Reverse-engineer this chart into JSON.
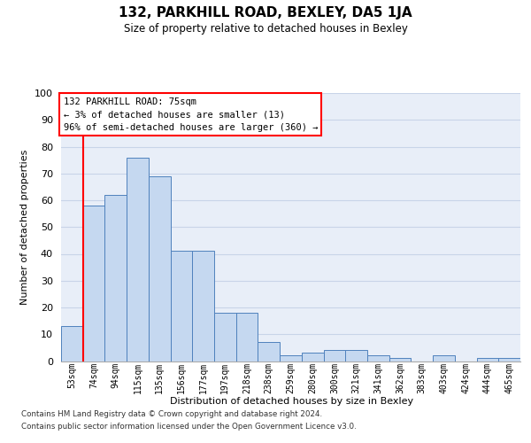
{
  "title": "132, PARKHILL ROAD, BEXLEY, DA5 1JA",
  "subtitle": "Size of property relative to detached houses in Bexley",
  "xlabel": "Distribution of detached houses by size in Bexley",
  "ylabel": "Number of detached properties",
  "categories": [
    "53sqm",
    "74sqm",
    "94sqm",
    "115sqm",
    "135sqm",
    "156sqm",
    "177sqm",
    "197sqm",
    "218sqm",
    "238sqm",
    "259sqm",
    "280sqm",
    "300sqm",
    "321sqm",
    "341sqm",
    "362sqm",
    "383sqm",
    "403sqm",
    "424sqm",
    "444sqm",
    "465sqm"
  ],
  "values": [
    13,
    58,
    62,
    76,
    69,
    41,
    41,
    18,
    18,
    7,
    2,
    3,
    4,
    4,
    2,
    1,
    0,
    2,
    0,
    1,
    1
  ],
  "bar_color": "#c5d8f0",
  "bar_edge_color": "#4f81bd",
  "annotation_text": "132 PARKHILL ROAD: 75sqm\n← 3% of detached houses are smaller (13)\n96% of semi-detached houses are larger (360) →",
  "ylim": [
    0,
    100
  ],
  "yticks": [
    0,
    10,
    20,
    30,
    40,
    50,
    60,
    70,
    80,
    90,
    100
  ],
  "grid_color": "#c8d4e8",
  "background_color": "#e8eef8",
  "footer_line1": "Contains HM Land Registry data © Crown copyright and database right 2024.",
  "footer_line2": "Contains public sector information licensed under the Open Government Licence v3.0."
}
